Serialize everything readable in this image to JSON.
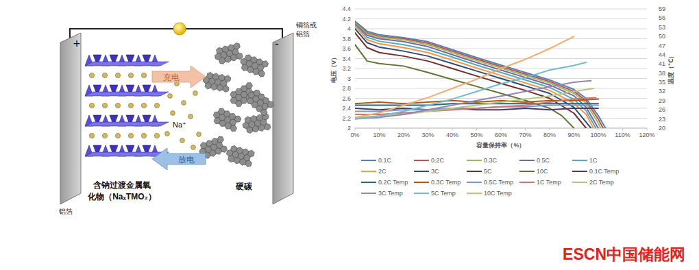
{
  "chart_data": {
    "type": "line",
    "x_label": "容量保持率（%）",
    "y_label": "电压（V）",
    "y2_label": "温度（℃）",
    "xlim": [
      0,
      120
    ],
    "xticks": [
      {
        "value": 0,
        "label": "0%"
      },
      {
        "value": 10,
        "label": "10%"
      },
      {
        "value": 20,
        "label": "20%"
      },
      {
        "value": 30,
        "label": "30%"
      },
      {
        "value": 40,
        "label": "40%"
      },
      {
        "value": 50,
        "label": "50%"
      },
      {
        "value": 60,
        "label": "60%"
      },
      {
        "value": 70,
        "label": "70%"
      },
      {
        "value": 80,
        "label": "80%"
      },
      {
        "value": 90,
        "label": "90%"
      },
      {
        "value": 100,
        "label": "100%"
      },
      {
        "value": 110,
        "label": "110%"
      },
      {
        "value": 120,
        "label": "120%"
      }
    ],
    "ylim": [
      2,
      4.4
    ],
    "yticks": [
      2,
      2.2,
      2.4,
      2.6,
      2.8,
      3,
      3.2,
      3.4,
      3.6,
      3.8,
      4,
      4.2,
      4.4
    ],
    "y2lim": [
      20,
      59
    ],
    "y2ticks": [
      20,
      23,
      26,
      29,
      32,
      35,
      38,
      41,
      44,
      47,
      50,
      53,
      56,
      59
    ],
    "grid": true,
    "legend": "bottom",
    "series": [
      {
        "name": "0.1C",
        "color": "#4F81BD",
        "x": [
          0,
          5,
          10,
          20,
          30,
          40,
          50,
          60,
          70,
          80,
          90,
          95,
          100,
          103
        ],
        "values": [
          4.15,
          3.95,
          3.88,
          3.82,
          3.74,
          3.58,
          3.42,
          3.27,
          3.12,
          2.97,
          2.78,
          2.6,
          2.25,
          2.0
        ]
      },
      {
        "name": "0.2C",
        "color": "#C0504D",
        "x": [
          0,
          5,
          10,
          20,
          30,
          40,
          50,
          60,
          70,
          80,
          90,
          95,
          100,
          102
        ],
        "values": [
          4.13,
          3.92,
          3.85,
          3.8,
          3.71,
          3.55,
          3.39,
          3.24,
          3.09,
          2.94,
          2.74,
          2.55,
          2.18,
          2.0
        ]
      },
      {
        "name": "0.3C",
        "color": "#9BBB59",
        "x": [
          0,
          5,
          10,
          20,
          30,
          40,
          50,
          60,
          70,
          80,
          90,
          95,
          100,
          101
        ],
        "values": [
          4.12,
          3.9,
          3.83,
          3.78,
          3.68,
          3.52,
          3.36,
          3.21,
          3.06,
          2.91,
          2.7,
          2.5,
          2.1,
          2.0
        ]
      },
      {
        "name": "0.5C",
        "color": "#8064A2",
        "x": [
          0,
          5,
          10,
          20,
          30,
          40,
          50,
          60,
          70,
          80,
          90,
          95,
          100
        ],
        "values": [
          4.1,
          3.87,
          3.8,
          3.74,
          3.64,
          3.48,
          3.32,
          3.17,
          3.02,
          2.87,
          2.65,
          2.42,
          2.0
        ]
      },
      {
        "name": "1C",
        "color": "#4BACC6",
        "x": [
          0,
          5,
          10,
          20,
          30,
          40,
          50,
          60,
          70,
          80,
          90,
          95,
          99
        ],
        "values": [
          4.08,
          3.83,
          3.75,
          3.68,
          3.58,
          3.43,
          3.27,
          3.12,
          2.97,
          2.82,
          2.58,
          2.35,
          2.0
        ]
      },
      {
        "name": "2C",
        "color": "#F79646",
        "x": [
          0,
          5,
          10,
          20,
          30,
          40,
          50,
          60,
          70,
          80,
          90,
          95,
          98
        ],
        "values": [
          4.05,
          3.78,
          3.7,
          3.62,
          3.52,
          3.37,
          3.21,
          3.06,
          2.91,
          2.76,
          2.5,
          2.28,
          2.0
        ]
      },
      {
        "name": "3C",
        "color": "#2C4D75",
        "x": [
          0,
          5,
          10,
          20,
          30,
          40,
          50,
          60,
          70,
          80,
          90,
          97
        ],
        "values": [
          4.0,
          3.72,
          3.63,
          3.55,
          3.45,
          3.3,
          3.15,
          3.0,
          2.85,
          2.7,
          2.42,
          2.0
        ]
      },
      {
        "name": "5C",
        "color": "#772C2A",
        "x": [
          0,
          5,
          10,
          20,
          30,
          40,
          50,
          60,
          70,
          80,
          90,
          95
        ],
        "values": [
          3.92,
          3.62,
          3.52,
          3.45,
          3.35,
          3.2,
          3.05,
          2.9,
          2.76,
          2.6,
          2.3,
          2.0
        ]
      },
      {
        "name": "10C",
        "color": "#5F7530",
        "x": [
          0,
          5,
          10,
          20,
          30,
          40,
          50,
          60,
          70,
          80,
          85,
          90
        ],
        "values": [
          3.68,
          3.35,
          3.3,
          3.25,
          3.12,
          2.98,
          2.84,
          2.7,
          2.56,
          2.4,
          2.25,
          2.0
        ]
      },
      {
        "name": "0.1C Temp",
        "color": "#4D3B62",
        "axis": "y2",
        "x": [
          0,
          10,
          20,
          30,
          40,
          50,
          60,
          70,
          80,
          90,
          100
        ],
        "values": [
          26.5,
          26,
          26.5,
          26,
          26.5,
          26,
          26,
          26.5,
          26,
          26.5,
          26.5
        ]
      },
      {
        "name": "0.2C Temp",
        "color": "#276A7C",
        "axis": "y2",
        "x": [
          0,
          10,
          20,
          30,
          40,
          50,
          60,
          70,
          80,
          90,
          100
        ],
        "values": [
          27.5,
          27.5,
          27.5,
          27.5,
          28,
          28,
          28,
          28,
          28,
          28,
          28
        ]
      },
      {
        "name": "0.3C Temp",
        "color": "#B65708",
        "axis": "y2",
        "x": [
          0,
          10,
          20,
          30,
          40,
          50,
          60,
          70,
          80,
          90,
          100
        ],
        "values": [
          28,
          28.5,
          28,
          28.5,
          29,
          28.5,
          29,
          28.5,
          29,
          29,
          29.5
        ]
      },
      {
        "name": "0.5C Temp",
        "color": "#729ACA",
        "axis": "y2",
        "x": [
          0,
          10,
          20,
          30,
          40,
          50,
          60,
          70,
          80,
          90,
          100
        ],
        "values": [
          25.5,
          25.5,
          26,
          26,
          26.5,
          26.5,
          27,
          27,
          27.5,
          27.5,
          27.5
        ]
      },
      {
        "name": "1C Temp",
        "color": "#CD7371",
        "axis": "y2",
        "x": [
          0,
          10,
          20,
          30,
          40,
          50,
          60,
          70,
          80,
          90,
          99
        ],
        "values": [
          24.5,
          24.5,
          25,
          25.5,
          26,
          26.5,
          27,
          27.5,
          28.5,
          29.5,
          30
        ]
      },
      {
        "name": "2C Temp",
        "color": "#AFC97A",
        "axis": "y2",
        "x": [
          0,
          10,
          20,
          30,
          40,
          50,
          60,
          70,
          80,
          90,
          98
        ],
        "values": [
          23.5,
          24,
          24.5,
          25.5,
          26.5,
          27.5,
          28.5,
          29.5,
          30.5,
          32,
          33
        ]
      },
      {
        "name": "3C Temp",
        "color": "#9983B5",
        "axis": "y2",
        "x": [
          0,
          10,
          20,
          30,
          40,
          50,
          60,
          70,
          80,
          90,
          97
        ],
        "values": [
          23,
          23.5,
          24.5,
          26,
          27.5,
          29,
          30.5,
          32,
          33.5,
          35,
          35.5
        ]
      },
      {
        "name": "5C Temp",
        "color": "#6FBDD1",
        "axis": "y2",
        "x": [
          0,
          10,
          20,
          30,
          40,
          50,
          60,
          70,
          80,
          90,
          95
        ],
        "values": [
          23,
          24,
          25.5,
          27.5,
          29.5,
          32,
          34.5,
          36.5,
          39,
          40.5,
          41.5
        ]
      },
      {
        "name": "10C Temp",
        "color": "#F9AB6B",
        "axis": "y2",
        "x": [
          0,
          10,
          20,
          30,
          40,
          50,
          60,
          70,
          80,
          90
        ],
        "values": [
          23.5,
          25,
          27.5,
          30,
          33,
          36,
          39.5,
          42.5,
          46,
          50
        ]
      }
    ]
  },
  "diagram": {
    "positive_sign": "+",
    "negative_sign": "-",
    "cathode_foil": "铝箔",
    "anode_foil": [
      "铜箔或",
      "铝箔"
    ],
    "cathode_material": [
      "含钠过渡金属氧",
      "化物（NaₓTMO₂）"
    ],
    "anode_material": "硬碳",
    "charge": "充电",
    "discharge": "放电",
    "ion": "Na⁺"
  },
  "logo": {
    "text": "ESCN中国储能网"
  }
}
